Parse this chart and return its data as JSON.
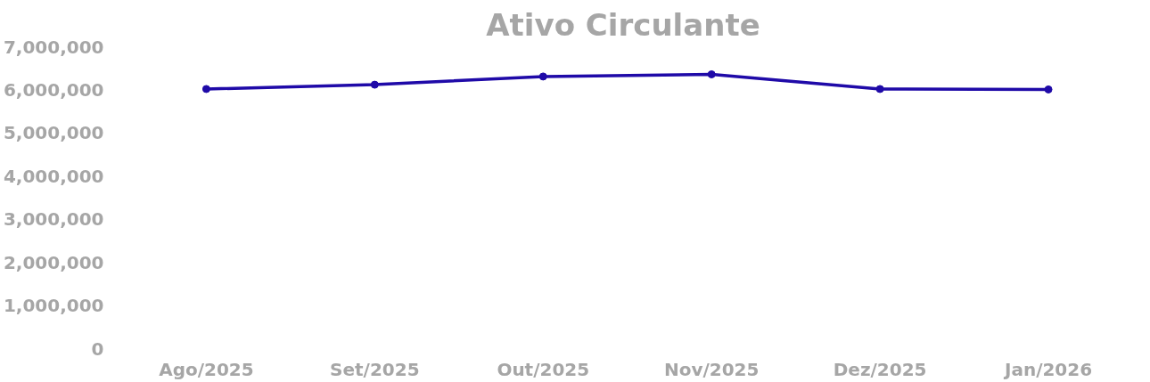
{
  "chart_data": {
    "type": "line",
    "title": "Ativo Circulante",
    "categories": [
      "Ago/2025",
      "Set/2025",
      "Out/2025",
      "Nov/2025",
      "Dez/2025",
      "Jan/2026"
    ],
    "series": [
      {
        "color": "#1f0aa8",
        "values": [
          6020000,
          6120000,
          6310000,
          6360000,
          6020000,
          6010000
        ]
      }
    ],
    "ylim": [
      0,
      7000000
    ],
    "yticks": [
      0,
      {
        "value": 1000000,
        "label": "1,000,000"
      },
      {
        "value": 2000000,
        "label": "2,000,000"
      },
      {
        "value": 3000000,
        "label": "3,000,000"
      },
      {
        "value": 4000000,
        "label": "4,000,000"
      },
      {
        "value": 5000000,
        "label": "5,000,000"
      },
      {
        "value": 6000000,
        "label": "6,000,000"
      },
      {
        "value": 7000000,
        "label": "7,000,000"
      }
    ],
    "grid": false,
    "marker": "circle",
    "line_style": "solid"
  }
}
